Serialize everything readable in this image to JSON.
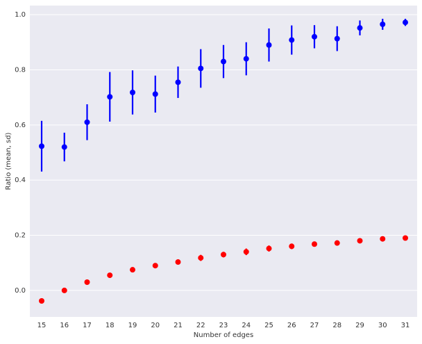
{
  "chart_data": {
    "type": "pointplot",
    "x_label": "Number of edges",
    "y_label": "Ratio (mean, sd)",
    "categories": [
      "15",
      "16",
      "17",
      "18",
      "19",
      "20",
      "21",
      "22",
      "23",
      "24",
      "25",
      "26",
      "27",
      "28",
      "29",
      "30",
      "31"
    ],
    "series": [
      {
        "color": "#0000ff",
        "values": [
          0.523,
          0.52,
          0.61,
          0.702,
          0.718,
          0.712,
          0.755,
          0.805,
          0.83,
          0.84,
          0.89,
          0.908,
          0.92,
          0.913,
          0.952,
          0.965,
          0.972
        ],
        "errors": [
          0.092,
          0.052,
          0.065,
          0.09,
          0.08,
          0.067,
          0.057,
          0.07,
          0.06,
          0.06,
          0.06,
          0.053,
          0.042,
          0.045,
          0.027,
          0.02,
          0.013
        ]
      },
      {
        "color": "#ff0000",
        "values": [
          -0.038,
          0.0,
          0.03,
          0.055,
          0.075,
          0.09,
          0.103,
          0.118,
          0.13,
          0.14,
          0.152,
          0.16,
          0.168,
          0.172,
          0.18,
          0.187,
          0.19
        ],
        "errors": [
          0.004,
          0.004,
          0.005,
          0.005,
          0.007,
          0.007,
          0.008,
          0.011,
          0.01,
          0.012,
          0.011,
          0.01,
          0.008,
          0.008,
          0.006,
          0.005,
          0.005
        ]
      }
    ],
    "ylim": [
      -0.096,
      1.033
    ],
    "yticks": [
      {
        "value": 0,
        "label": "0.0"
      },
      {
        "value": 0.2,
        "label": "0.2"
      },
      {
        "value": 0.4,
        "label": "0.4"
      },
      {
        "value": 0.6,
        "label": "0.6"
      },
      {
        "value": 0.8,
        "label": "0.8"
      },
      {
        "value": 1,
        "label": "1.0"
      }
    ],
    "grid": true,
    "background": "#eaeaf2"
  }
}
